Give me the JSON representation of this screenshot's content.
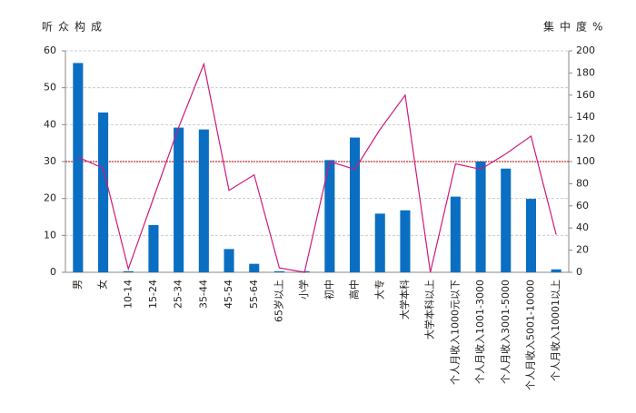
{
  "chart_data": {
    "type": "bar_line",
    "ylabel": "听众构成",
    "y2label": "集中度%",
    "categories": [
      "男",
      "女",
      "10-14",
      "15-24",
      "25-34",
      "35-44",
      "45-54",
      "55-64",
      "65岁以上",
      "小学",
      "初中",
      "高中",
      "大专",
      "大学本科",
      "大学本科以上",
      "个人月收入1000元以下",
      "个人月收入1001-3000",
      "个人月收入3001-5000",
      "个人月收入5001-10000",
      "个人月收入10001以上"
    ],
    "series": [
      {
        "type": "bar",
        "color": "#0a6fc2",
        "values": [
          56.7,
          43.3,
          0.3,
          12.8,
          39.2,
          38.7,
          6.3,
          2.3,
          0.3,
          0.3,
          30.4,
          36.5,
          15.9,
          16.8,
          0,
          20.5,
          30,
          28.1,
          19.9,
          0.8
        ]
      },
      {
        "type": "line",
        "axis": "y2",
        "color": "#d0197a",
        "values": [
          104,
          94,
          3,
          67,
          131,
          188,
          74,
          88,
          4,
          0,
          100,
          93,
          129,
          160,
          0,
          98,
          93,
          107,
          123,
          34
        ]
      }
    ],
    "reference_line": {
      "value": 100,
      "axis": "y2",
      "color": "#c00000"
    },
    "ylim": [
      0,
      60
    ],
    "yticks": [
      0,
      10,
      20,
      30,
      40,
      50,
      60
    ],
    "y2lim": [
      0,
      200
    ],
    "y2ticks": [
      0,
      20,
      40,
      60,
      80,
      100,
      120,
      140,
      160,
      180,
      200
    ],
    "grid": true
  }
}
